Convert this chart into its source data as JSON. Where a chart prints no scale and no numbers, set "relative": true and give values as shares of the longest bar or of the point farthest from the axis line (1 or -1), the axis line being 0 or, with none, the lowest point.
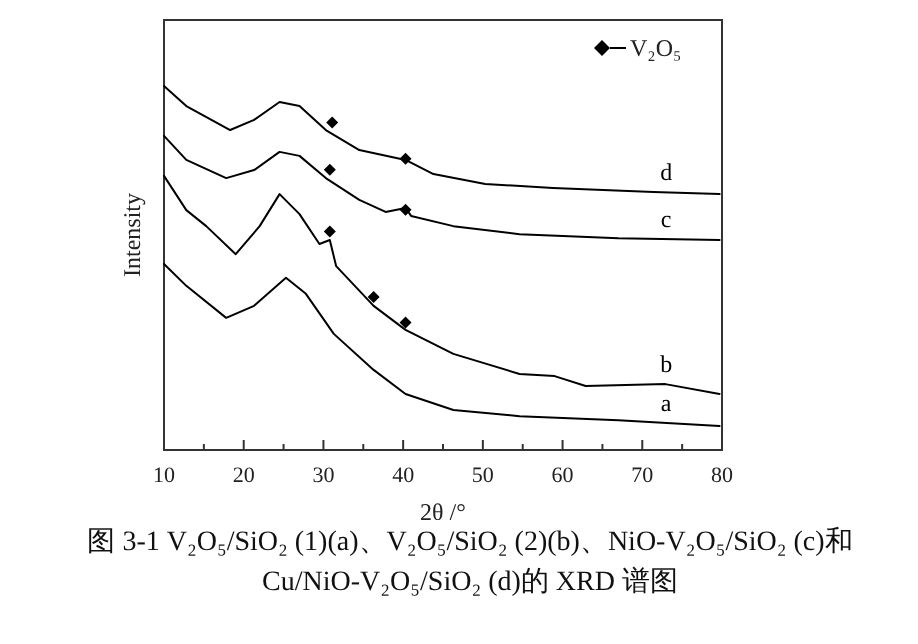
{
  "chart_data": {
    "type": "line",
    "relative": true,
    "xlabel": "2θ /°",
    "ylabel": "Intensity",
    "xlim": [
      10,
      80
    ],
    "xticks": [
      10,
      {
        "value": 15,
        "label": null
      },
      20,
      {
        "value": 25,
        "label": null
      },
      30,
      {
        "value": 35,
        "label": null
      },
      40,
      {
        "value": 45,
        "label": null
      },
      50,
      {
        "value": 55,
        "label": null
      },
      60,
      {
        "value": 65,
        "label": null
      },
      70,
      {
        "value": 75,
        "label": null
      },
      80
    ],
    "grid": false,
    "legend": "top right",
    "line_style": "solid",
    "marker": "none",
    "series": [
      {
        "name": "d",
        "color": "#000000",
        "x": [
          10,
          12.8,
          18.3,
          21.3,
          24.5,
          27,
          30.3,
          34.5,
          40.3,
          43.8,
          50.3,
          58.8,
          71.4,
          79.7
        ],
        "values": [
          1.0,
          0.945,
          0.879,
          0.907,
          0.956,
          0.945,
          0.879,
          0.824,
          0.797,
          0.758,
          0.731,
          0.72,
          0.709,
          0.703
        ]
      },
      {
        "name": "c",
        "color": "#000000",
        "x": [
          10,
          12.8,
          17.8,
          21.3,
          24.5,
          27,
          30.3,
          34.5,
          37.8,
          40.3,
          41.0,
          46.3,
          54.6,
          67,
          79.7
        ],
        "values": [
          0.863,
          0.797,
          0.747,
          0.769,
          0.819,
          0.808,
          0.747,
          0.687,
          0.654,
          0.665,
          0.643,
          0.615,
          0.593,
          0.582,
          0.577
        ]
      },
      {
        "name": "b",
        "color": "#000000",
        "x": [
          10,
          12.8,
          15.3,
          19,
          22,
          24.5,
          27,
          29.5,
          30.8,
          31.6,
          36.3,
          40.3,
          46.3,
          54.6,
          59,
          62.9,
          72.9,
          79.7
        ],
        "values": [
          0.753,
          0.659,
          0.615,
          0.538,
          0.615,
          0.703,
          0.648,
          0.566,
          0.577,
          0.505,
          0.396,
          0.33,
          0.264,
          0.209,
          0.203,
          0.176,
          0.181,
          0.154
        ]
      },
      {
        "name": "a",
        "color": "#000000",
        "x": [
          10,
          12.8,
          17.8,
          21.3,
          25.3,
          27.8,
          31.3,
          36.3,
          40.3,
          46.3,
          54.6,
          67,
          79.7
        ],
        "values": [
          0.511,
          0.451,
          0.363,
          0.396,
          0.473,
          0.429,
          0.319,
          0.22,
          0.154,
          0.11,
          0.093,
          0.082,
          0.066
        ]
      },
      {
        "name": "V₂O₅",
        "type": "scatter",
        "marker": "diamond",
        "color": "#000000",
        "x": [
          31.1,
          40.3,
          30.8,
          40.3,
          30.8,
          36.3,
          40.3
        ],
        "values": [
          0.9,
          0.8,
          0.77,
          0.66,
          0.6,
          0.42,
          0.35
        ]
      }
    ],
    "annotations": [
      "图 3-1 V₂O₅/SiO₂ (1)(a)、V₂O₅/SiO₂ (2)(b)、NiO-V₂O₅/SiO₂ (c)和 Cu/NiO-V₂O₅/SiO₂ (d)的 XRD 谱图"
    ]
  }
}
